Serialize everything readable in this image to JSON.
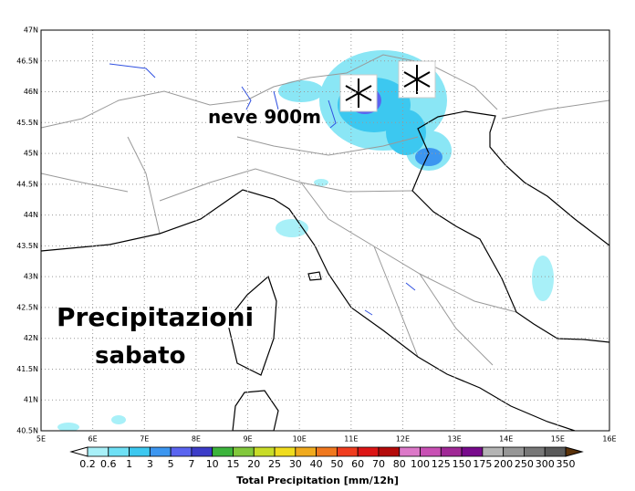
{
  "map": {
    "lat_labels": [
      "47N",
      "46.5N",
      "46N",
      "45.5N",
      "45N",
      "44.5N",
      "44N",
      "43.5N",
      "43N",
      "42.5N",
      "42N",
      "41.5N",
      "41N",
      "40.5N"
    ],
    "lon_labels": [
      "5E",
      "6E",
      "7E",
      "8E",
      "9E",
      "10E",
      "11E",
      "12E",
      "13E",
      "14E",
      "15E",
      "16E"
    ],
    "annotations": {
      "snow": "neve 900m",
      "line1": "Precipitazioni",
      "line2": "sabato"
    },
    "colorbar": {
      "title": "Total Precipitation [mm/12h]",
      "labels": [
        "0.2",
        "0.6",
        "1",
        "3",
        "5",
        "7",
        "10",
        "15",
        "20",
        "25",
        "30",
        "40",
        "50",
        "60",
        "70",
        "80",
        "100",
        "125",
        "150",
        "175",
        "200",
        "250",
        "300",
        "350"
      ],
      "colors": [
        "#ffffff",
        "#a8f0f8",
        "#6ee0f5",
        "#3cc8f0",
        "#3c96f0",
        "#5a64f0",
        "#3c3cc8",
        "#3cb43c",
        "#82c83c",
        "#c8dc28",
        "#f0dc1e",
        "#f0aa1e",
        "#f0781e",
        "#f03c1e",
        "#dc1414",
        "#b40a0a",
        "#dc78c8",
        "#c850b4",
        "#a02896",
        "#780a8c",
        "#b4b4b4",
        "#969696",
        "#787878",
        "#5a5a5a",
        "#a07828",
        "#8c5a1e",
        "#784614",
        "#5a320a"
      ]
    }
  }
}
